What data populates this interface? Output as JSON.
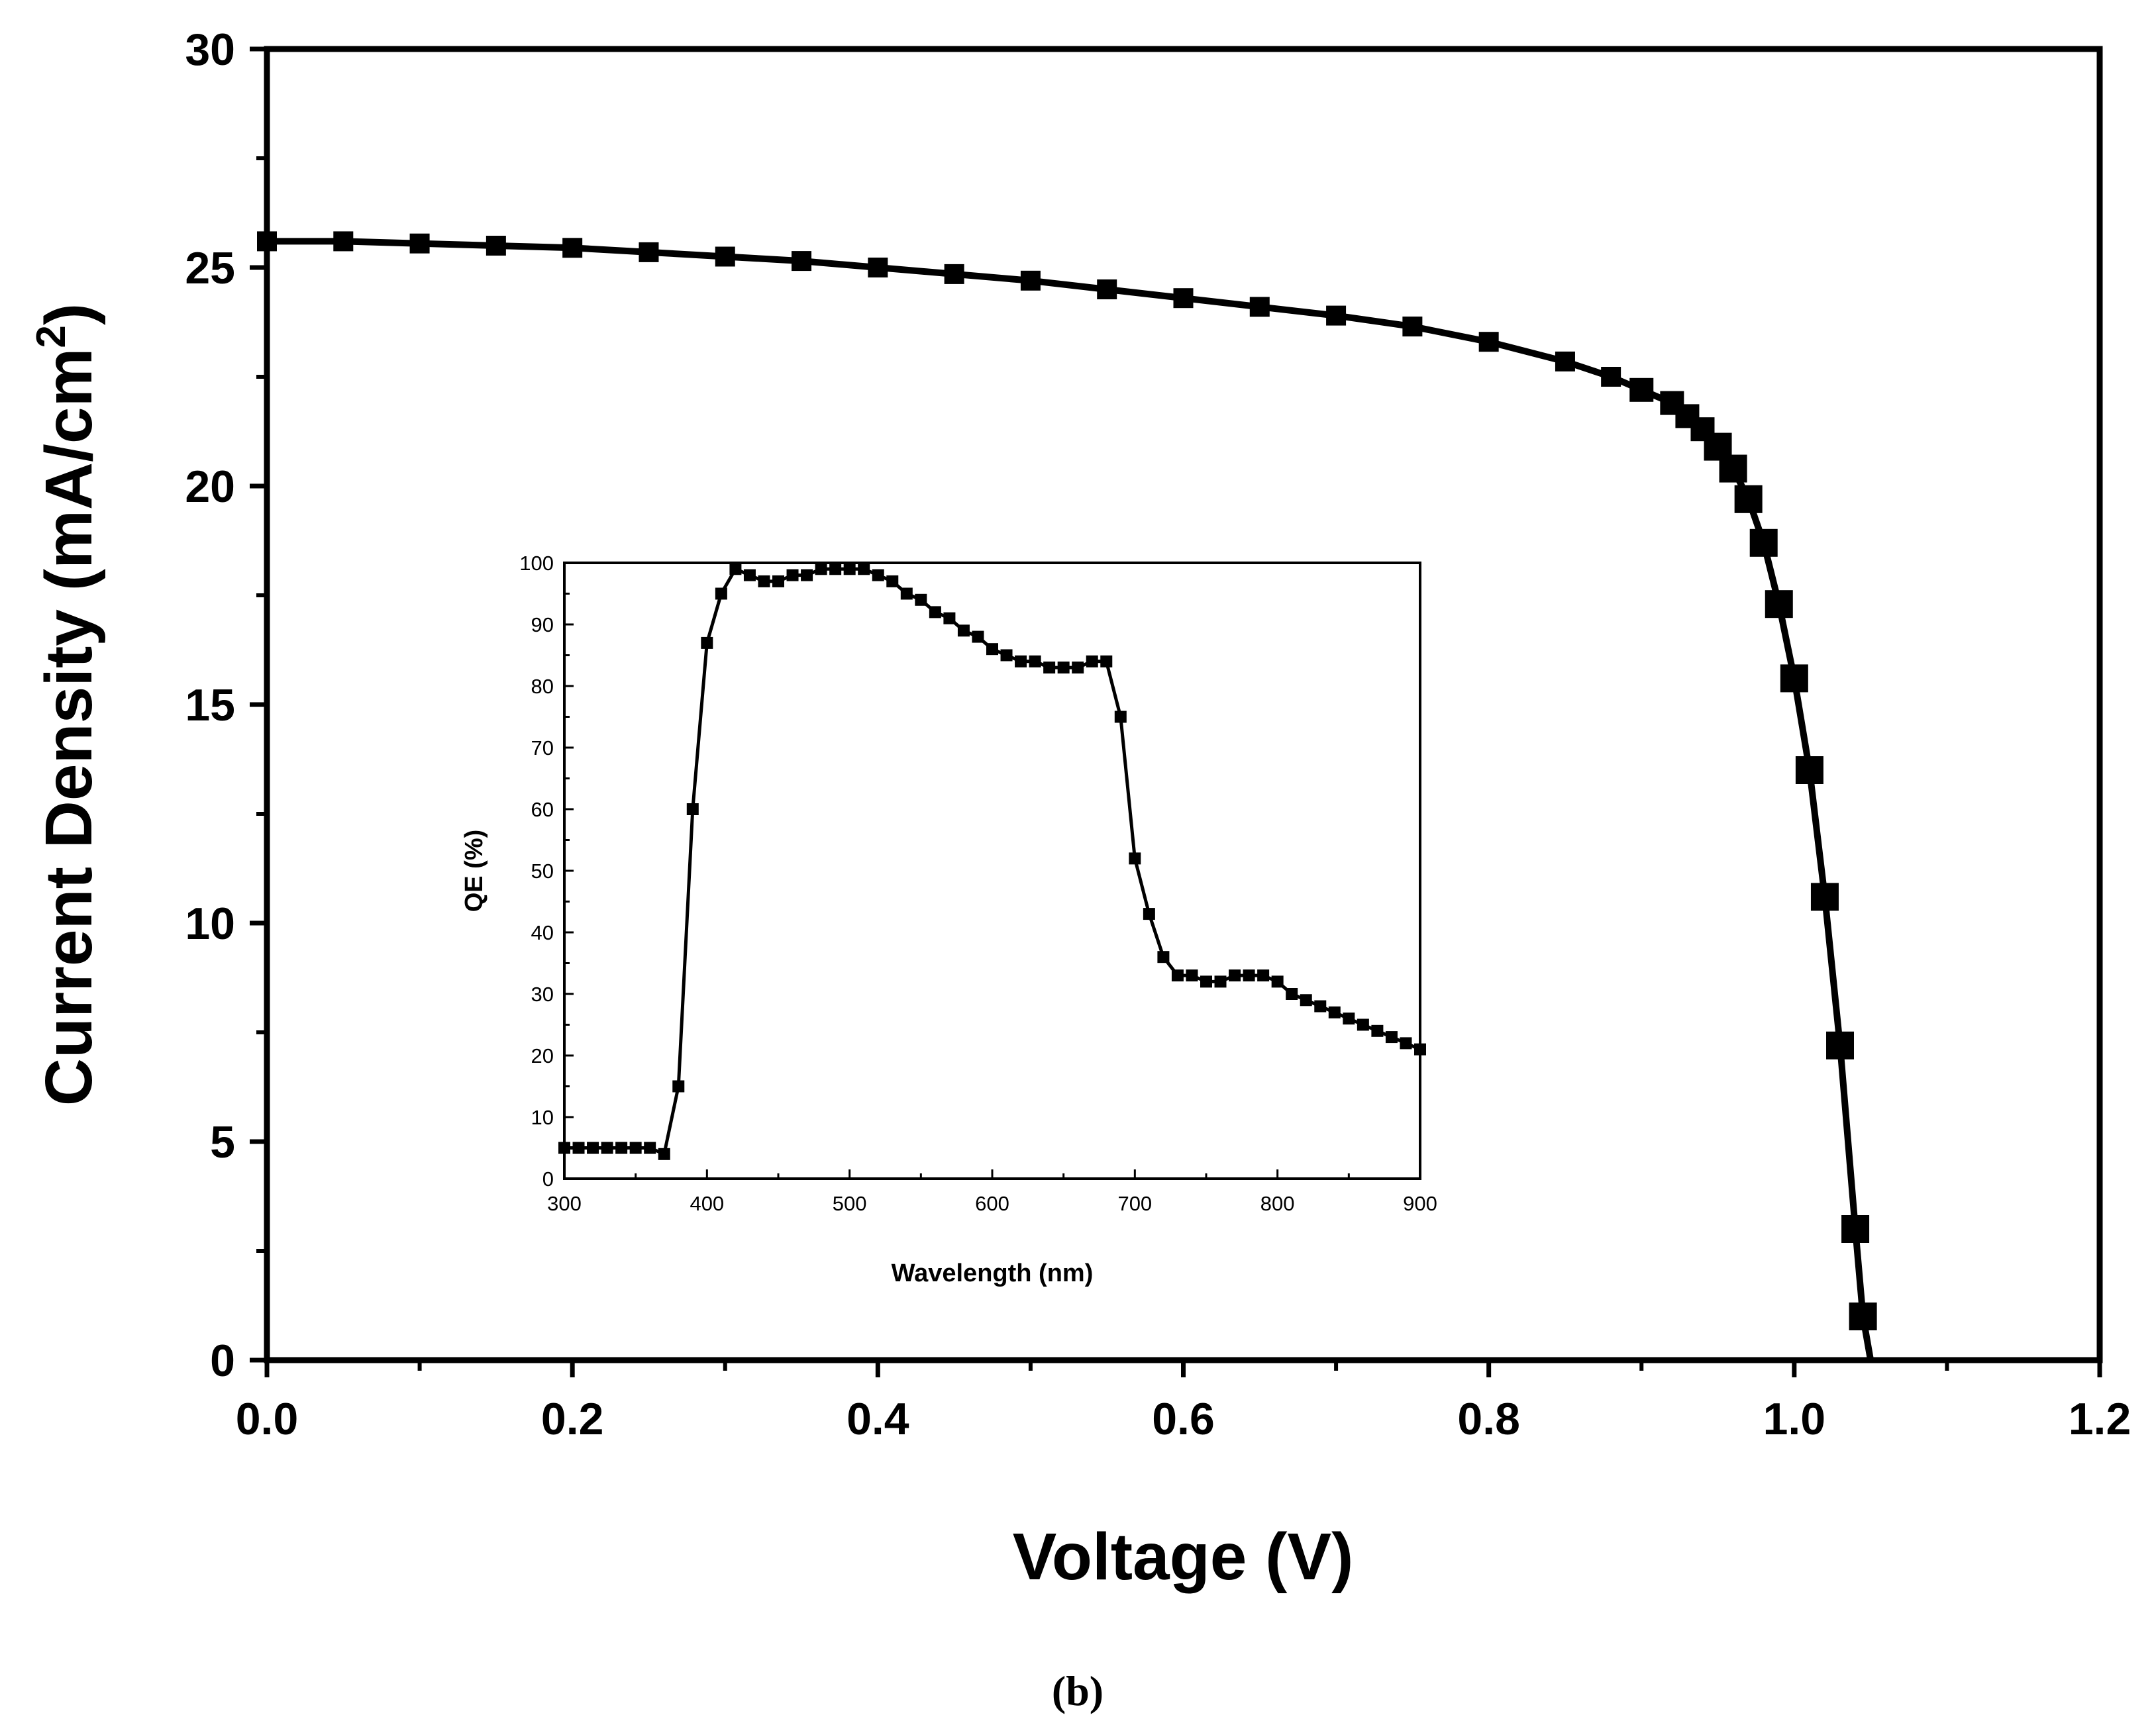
{
  "caption": "(b)",
  "chart_data": [
    {
      "type": "scatter",
      "xlabel": "Voltage (V)",
      "ylabel_main": "Current Density (mA/cm",
      "ylabel_sup": "2",
      "ylabel_close": ")",
      "xlim": [
        0.0,
        1.2
      ],
      "ylim": [
        0,
        30
      ],
      "xticks": [
        "0.0",
        "0.2",
        "0.4",
        "0.6",
        "0.8",
        "1.0",
        "1.2"
      ],
      "yticks": [
        "0",
        "5",
        "10",
        "15",
        "20",
        "25",
        "30"
      ],
      "grid": false,
      "marker": "square",
      "color": "#000000",
      "series": [
        {
          "x": [
            0.0,
            0.05,
            0.1,
            0.15,
            0.2,
            0.25,
            0.3,
            0.35,
            0.4,
            0.45,
            0.5,
            0.55,
            0.6,
            0.65,
            0.7,
            0.75,
            0.8,
            0.85,
            0.88,
            0.9,
            0.92,
            0.93,
            0.94,
            0.95,
            0.96,
            0.97,
            0.98,
            0.99,
            1.0,
            1.01,
            1.02,
            1.03,
            1.04,
            1.045,
            1.05
          ],
          "y": [
            25.6,
            25.6,
            25.55,
            25.5,
            25.45,
            25.35,
            25.25,
            25.15,
            25.0,
            24.85,
            24.7,
            24.5,
            24.3,
            24.1,
            23.9,
            23.65,
            23.3,
            22.85,
            22.5,
            22.2,
            21.9,
            21.6,
            21.3,
            20.9,
            20.4,
            19.7,
            18.7,
            17.3,
            15.6,
            13.5,
            10.6,
            7.2,
            3.0,
            1.0,
            0
          ]
        }
      ]
    },
    {
      "type": "line",
      "inset": true,
      "xlabel": "Wavelength (nm)",
      "ylabel": "QE (%)",
      "xlim": [
        300,
        900
      ],
      "ylim": [
        0,
        100
      ],
      "xticks": [
        "300",
        "400",
        "500",
        "600",
        "700",
        "800",
        "900"
      ],
      "yticks": [
        "0",
        "10",
        "20",
        "30",
        "40",
        "50",
        "60",
        "70",
        "80",
        "90",
        "100"
      ],
      "grid": false,
      "marker": "square",
      "color": "#000000",
      "series": [
        {
          "x": [
            300,
            310,
            320,
            330,
            340,
            350,
            360,
            370,
            380,
            390,
            400,
            410,
            420,
            430,
            440,
            450,
            460,
            470,
            480,
            490,
            500,
            510,
            520,
            530,
            540,
            550,
            560,
            570,
            580,
            590,
            600,
            610,
            620,
            630,
            640,
            650,
            660,
            670,
            680,
            690,
            700,
            710,
            720,
            730,
            740,
            750,
            760,
            770,
            780,
            790,
            800,
            810,
            820,
            830,
            840,
            850,
            860,
            870,
            880,
            890,
            900
          ],
          "y": [
            5,
            5,
            5,
            5,
            5,
            5,
            5,
            4,
            15,
            60,
            87,
            95,
            99,
            98,
            97,
            97,
            98,
            98,
            99,
            99,
            99,
            99,
            98,
            97,
            95,
            94,
            92,
            91,
            89,
            88,
            86,
            85,
            84,
            84,
            83,
            83,
            83,
            84,
            84,
            75,
            52,
            43,
            36,
            33,
            33,
            32,
            32,
            33,
            33,
            33,
            32,
            30,
            29,
            28,
            27,
            26,
            25,
            24,
            23,
            22,
            21
          ]
        }
      ]
    }
  ]
}
